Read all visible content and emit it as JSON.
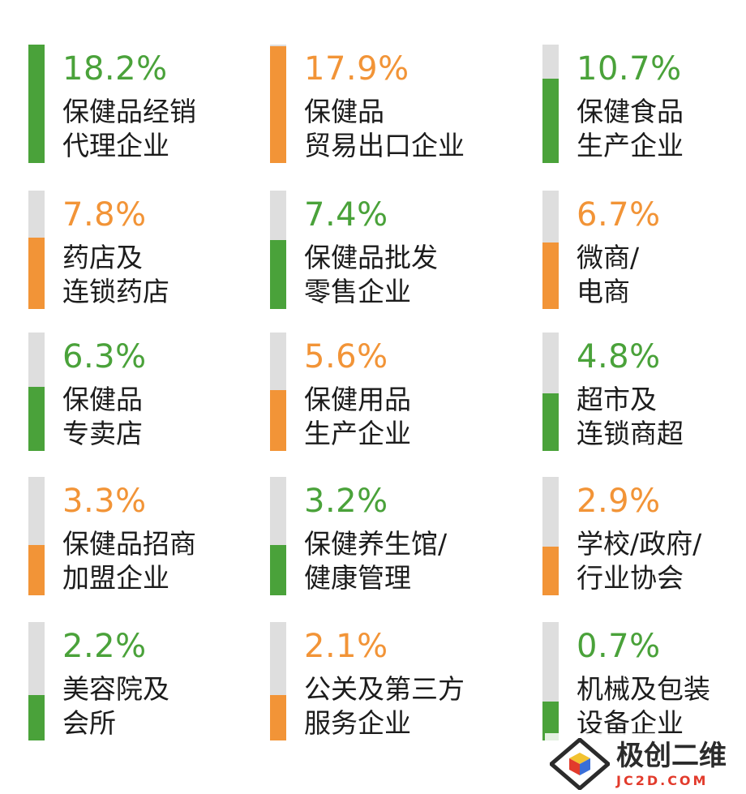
{
  "colors": {
    "green": "#4aa23a",
    "orange": "#f29437",
    "track": "#dedede"
  },
  "chart_data": {
    "type": "bar",
    "orientation": "vertical-gauge-tiles",
    "max_value": 18.2,
    "categories": [
      {
        "percent_label": "18.2%",
        "value": 18.2,
        "lines": [
          "保健品经销",
          "代理企业"
        ],
        "color": "green"
      },
      {
        "percent_label": "17.9%",
        "value": 17.9,
        "lines": [
          "保健品",
          "贸易出口企业"
        ],
        "color": "orange"
      },
      {
        "percent_label": "10.7%",
        "value": 10.7,
        "lines": [
          "保健食品",
          "生产企业"
        ],
        "color": "green"
      },
      {
        "percent_label": "7.8%",
        "value": 7.8,
        "lines": [
          "药店及",
          "连锁药店"
        ],
        "color": "orange"
      },
      {
        "percent_label": "7.4%",
        "value": 7.4,
        "lines": [
          "保健品批发",
          "零售企业"
        ],
        "color": "green"
      },
      {
        "percent_label": "6.7%",
        "value": 6.7,
        "lines": [
          "微商/",
          "电商"
        ],
        "color": "orange"
      },
      {
        "percent_label": "6.3%",
        "value": 6.3,
        "lines": [
          "保健品",
          "专卖店"
        ],
        "color": "green"
      },
      {
        "percent_label": "5.6%",
        "value": 5.6,
        "lines": [
          "保健用品",
          "生产企业"
        ],
        "color": "orange"
      },
      {
        "percent_label": "4.8%",
        "value": 4.8,
        "lines": [
          "超市及",
          "连锁商超"
        ],
        "color": "green"
      },
      {
        "percent_label": "3.3%",
        "value": 3.3,
        "lines": [
          "保健品招商",
          "加盟企业"
        ],
        "color": "orange"
      },
      {
        "percent_label": "3.2%",
        "value": 3.2,
        "lines": [
          "保健养生馆/",
          "健康管理"
        ],
        "color": "green"
      },
      {
        "percent_label": "2.9%",
        "value": 2.9,
        "lines": [
          "学校/政府/",
          "行业协会"
        ],
        "color": "orange"
      },
      {
        "percent_label": "2.2%",
        "value": 2.2,
        "lines": [
          "美容院及",
          "会所"
        ],
        "color": "green"
      },
      {
        "percent_label": "2.1%",
        "value": 2.1,
        "lines": [
          "公关及第三方",
          "服务企业"
        ],
        "color": "orange"
      },
      {
        "percent_label": "0.7%",
        "value": 0.7,
        "lines": [
          "机械及包装",
          "设备企业"
        ],
        "color": "green"
      }
    ]
  },
  "watermark": {
    "text": "极创二维",
    "url": "JC2D.COM"
  }
}
